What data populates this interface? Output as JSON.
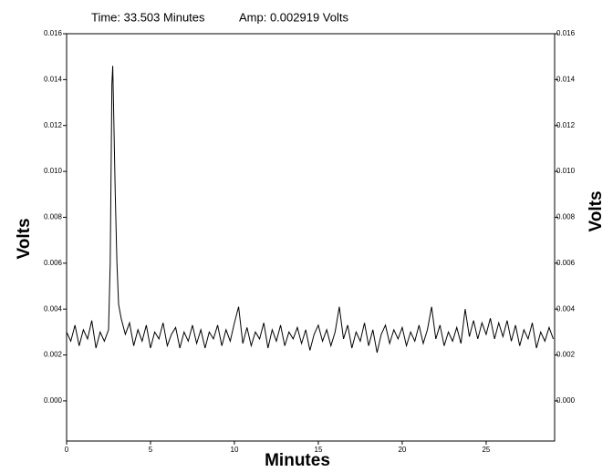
{
  "chart_data": {
    "type": "line",
    "annotations": [
      "Time: 33.503 Minutes",
      "Amp: 0.002919 Volts"
    ],
    "x_label": "Minutes",
    "y_label": "Volts",
    "y2_label": "Volts",
    "color": "#000000",
    "xlim": [
      0,
      29.08
    ],
    "xticks": [
      0,
      5,
      10,
      15,
      20,
      25
    ],
    "ylim": [
      -0.00175,
      0.016
    ],
    "yticks": [
      {
        "value": 0,
        "label": "0.000"
      },
      0.002,
      0.004,
      0.006,
      0.008,
      {
        "value": 0.01,
        "label": "0.010"
      },
      0.012,
      0.014,
      0.016
    ],
    "x": [
      0,
      0.25,
      0.5,
      0.75,
      1,
      1.25,
      1.5,
      1.75,
      2,
      2.25,
      2.5,
      2.6,
      2.7,
      2.75,
      2.8,
      2.9,
      3,
      3.1,
      3.25,
      3.5,
      3.75,
      4,
      4.25,
      4.5,
      4.75,
      5,
      5.25,
      5.5,
      5.75,
      6,
      6.25,
      6.5,
      6.75,
      7,
      7.25,
      7.5,
      7.75,
      8,
      8.25,
      8.5,
      8.75,
      9,
      9.25,
      9.5,
      9.75,
      10,
      10.25,
      10.5,
      10.75,
      11,
      11.25,
      11.5,
      11.75,
      12,
      12.25,
      12.5,
      12.75,
      13,
      13.25,
      13.5,
      13.75,
      14,
      14.25,
      14.5,
      14.75,
      15,
      15.25,
      15.5,
      15.75,
      16,
      16.25,
      16.5,
      16.75,
      17,
      17.25,
      17.5,
      17.75,
      18,
      18.25,
      18.5,
      18.75,
      19,
      19.25,
      19.5,
      19.75,
      20,
      20.25,
      20.5,
      20.75,
      21,
      21.25,
      21.5,
      21.75,
      22,
      22.25,
      22.5,
      22.75,
      23,
      23.25,
      23.5,
      23.75,
      24,
      24.25,
      24.5,
      24.75,
      25,
      25.25,
      25.5,
      25.75,
      26,
      26.25,
      26.5,
      26.75,
      27,
      27.25,
      27.5,
      27.75,
      28,
      28.25,
      28.5,
      28.75,
      29
    ],
    "values": [
      0.003,
      0.0026,
      0.0033,
      0.0024,
      0.0031,
      0.0027,
      0.0035,
      0.0023,
      0.003,
      0.0026,
      0.0031,
      0.006,
      0.0138,
      0.0146,
      0.0128,
      0.009,
      0.006,
      0.0042,
      0.0036,
      0.0029,
      0.0034,
      0.0024,
      0.0031,
      0.0026,
      0.0033,
      0.0023,
      0.003,
      0.0027,
      0.0034,
      0.0024,
      0.0029,
      0.0032,
      0.0023,
      0.003,
      0.0026,
      0.0033,
      0.0025,
      0.0031,
      0.0023,
      0.003,
      0.0027,
      0.0033,
      0.0024,
      0.0031,
      0.0026,
      0.0034,
      0.0041,
      0.0025,
      0.0032,
      0.0024,
      0.003,
      0.0027,
      0.0034,
      0.0023,
      0.0031,
      0.0026,
      0.0033,
      0.0024,
      0.003,
      0.0027,
      0.0032,
      0.0025,
      0.0031,
      0.0022,
      0.0029,
      0.0033,
      0.0026,
      0.0031,
      0.0024,
      0.003,
      0.0041,
      0.0027,
      0.0033,
      0.0023,
      0.003,
      0.0026,
      0.0034,
      0.0024,
      0.0031,
      0.0021,
      0.0029,
      0.0033,
      0.0025,
      0.0031,
      0.0027,
      0.0032,
      0.0024,
      0.003,
      0.0026,
      0.0033,
      0.0025,
      0.0031,
      0.0041,
      0.0027,
      0.0033,
      0.0024,
      0.003,
      0.0026,
      0.0032,
      0.0025,
      0.004,
      0.0028,
      0.0035,
      0.0027,
      0.0034,
      0.0029,
      0.0036,
      0.0027,
      0.0034,
      0.0028,
      0.0035,
      0.0026,
      0.0033,
      0.0024,
      0.0031,
      0.0027,
      0.0034,
      0.0023,
      0.003,
      0.0026,
      0.0032,
      0.0027
    ]
  }
}
